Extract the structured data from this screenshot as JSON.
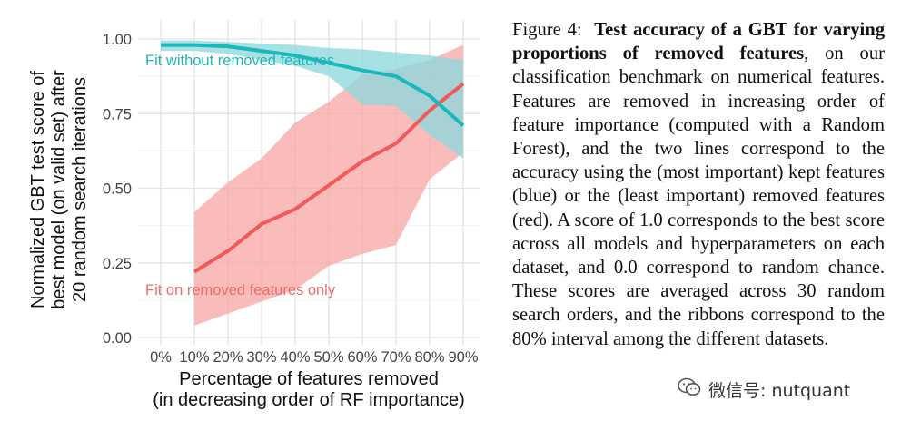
{
  "chart_data": {
    "type": "line",
    "title": "",
    "ylabel_lines": [
      "Normalized GBT test score of",
      "best model (on valid set) after",
      "20 random search iterations"
    ],
    "xlabel_lines": [
      "Percentage of features removed",
      "(in decreasing order of RF importance)"
    ],
    "x_ticks": [
      "0%",
      "10%",
      "20%",
      "30%",
      "40%",
      "50%",
      "60%",
      "70%",
      "80%",
      "90%"
    ],
    "y_ticks": [
      "0.00",
      "0.25",
      "0.50",
      "0.75",
      "1.00"
    ],
    "xlim": [
      0,
      90
    ],
    "ylim": [
      0,
      1
    ],
    "grid": true,
    "series": [
      {
        "name": "Fit without removed features",
        "color": "#19B8BC",
        "ribbon_color": "#8fd9dc",
        "label_color": "#22b5b8",
        "x": [
          0,
          10,
          20,
          30,
          40,
          50,
          60,
          70,
          80,
          90
        ],
        "values": [
          0.98,
          0.98,
          0.975,
          0.96,
          0.945,
          0.92,
          0.895,
          0.875,
          0.81,
          0.71
        ],
        "lower": [
          0.96,
          0.96,
          0.95,
          0.93,
          0.91,
          0.875,
          0.78,
          0.775,
          0.68,
          0.6
        ],
        "upper": [
          0.995,
          0.995,
          0.99,
          0.985,
          0.98,
          0.97,
          0.965,
          0.955,
          0.945,
          0.93
        ]
      },
      {
        "name": "Fit on removed features only",
        "color": "#F05A5A",
        "ribbon_color": "#f8a5a3",
        "label_color": "#ee6b6b",
        "x": [
          10,
          20,
          30,
          40,
          50,
          60,
          70,
          80,
          90
        ],
        "values": [
          0.22,
          0.29,
          0.38,
          0.43,
          0.51,
          0.59,
          0.65,
          0.76,
          0.85
        ],
        "lower": [
          0.04,
          0.08,
          0.12,
          0.16,
          0.24,
          0.28,
          0.31,
          0.53,
          0.62
        ],
        "upper": [
          0.42,
          0.52,
          0.6,
          0.72,
          0.79,
          0.88,
          0.9,
          0.93,
          0.98
        ]
      }
    ]
  },
  "caption": {
    "fig_label": "Figure 4:",
    "bold_title": "Test accuracy of a GBT for varying proportions of removed features",
    "body": ", on our classification benchmark on numerical features. Features are removed in increasing order of feature importance (computed with a Random Forest), and the two lines correspond to the accuracy using the (most important) kept features (blue) or the (least important) removed features (red). A score of 1.0 corresponds to the best score across all models and hyperparameters on each dataset, and 0.0 correspond to random chance. These scores are averaged across 30 random search orders, and the ribbons correspond to the 80% interval among the different datasets."
  },
  "watermark": {
    "text": "微信号: nutquant",
    "icon": "wechat-icon"
  }
}
